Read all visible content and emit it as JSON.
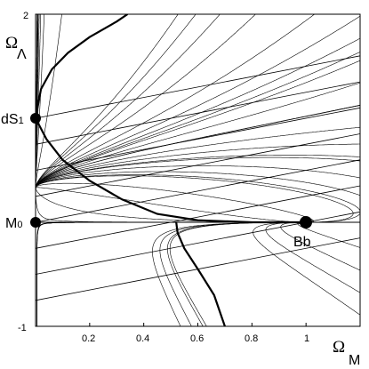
{
  "chart_data": {
    "type": "line",
    "title": "",
    "xlabel": {
      "main": "Ω",
      "sub": "M"
    },
    "ylabel": {
      "main": "Ω",
      "sub": "Λ"
    },
    "xlim": [
      0,
      1.2
    ],
    "ylim": [
      -1,
      2
    ],
    "x_ticks": [
      {
        "value": 0.2,
        "label": "0.2"
      },
      {
        "value": 0.4,
        "label": "0.4"
      },
      {
        "value": 0.6,
        "label": "0.6"
      },
      {
        "value": 0.8,
        "label": "0.8"
      },
      {
        "value": 1.0,
        "label": "1"
      }
    ],
    "y_ticks": [
      {
        "value": 2,
        "label": "2"
      },
      {
        "value": -1,
        "label": "-1"
      }
    ],
    "grid": false,
    "legend": "none",
    "fixed_points": [
      {
        "label": "dS",
        "label_suffix": "1",
        "x": 0,
        "y": 1
      },
      {
        "label": "M",
        "label_suffix": "0",
        "x": 0,
        "y": 0
      },
      {
        "label": "Bb",
        "x": 1,
        "y": 0
      }
    ],
    "flow": {
      "description_values": "trajectories of dΩM/dτ = ΩM(ΩM−2ΩΛ−1)/2 ... from dS1 (0,1) to Bb (1,0)",
      "separatrix_thick": [
        [
          0.0,
          1.0
        ],
        [
          0.02,
          1.28
        ],
        [
          0.06,
          1.47
        ],
        [
          0.12,
          1.63
        ],
        [
          0.2,
          1.78
        ],
        [
          0.3,
          1.93
        ],
        [
          0.34,
          2.0
        ]
      ],
      "separatrix_thick_lower": [
        [
          0.0,
          1.0
        ],
        [
          0.04,
          0.8
        ],
        [
          0.1,
          0.6
        ],
        [
          0.2,
          0.4
        ],
        [
          0.32,
          0.22
        ],
        [
          0.45,
          0.08
        ],
        [
          0.6,
          0.02
        ],
        [
          0.8,
          0.0
        ],
        [
          1.0,
          0.0
        ]
      ],
      "separatrix_thick_bottom": [
        [
          0.52,
          0.0
        ],
        [
          0.525,
          -0.1
        ],
        [
          0.55,
          -0.25
        ],
        [
          0.6,
          -0.45
        ],
        [
          0.66,
          -0.7
        ],
        [
          0.7,
          -1.0
        ]
      ],
      "stream_y_starts": [
        0.15,
        0.3,
        0.45,
        0.6,
        0.75,
        0.9,
        1.1,
        1.3,
        1.5,
        1.7,
        1.9,
        -0.2,
        -0.4,
        -0.6,
        -0.8
      ],
      "diagonal_lines": [
        {
          "a": 0.0,
          "slope": 0.5
        },
        {
          "a": 0.25,
          "slope": 0.5
        },
        {
          "a": 0.5,
          "slope": 0.5
        },
        {
          "a": 0.75,
          "slope": 0.5
        },
        {
          "a": 1.0,
          "slope": 0.5
        },
        {
          "a": -0.25,
          "slope": 0.5
        },
        {
          "a": -0.5,
          "slope": 0.5
        },
        {
          "a": -0.75,
          "slope": 0.5
        }
      ]
    }
  }
}
